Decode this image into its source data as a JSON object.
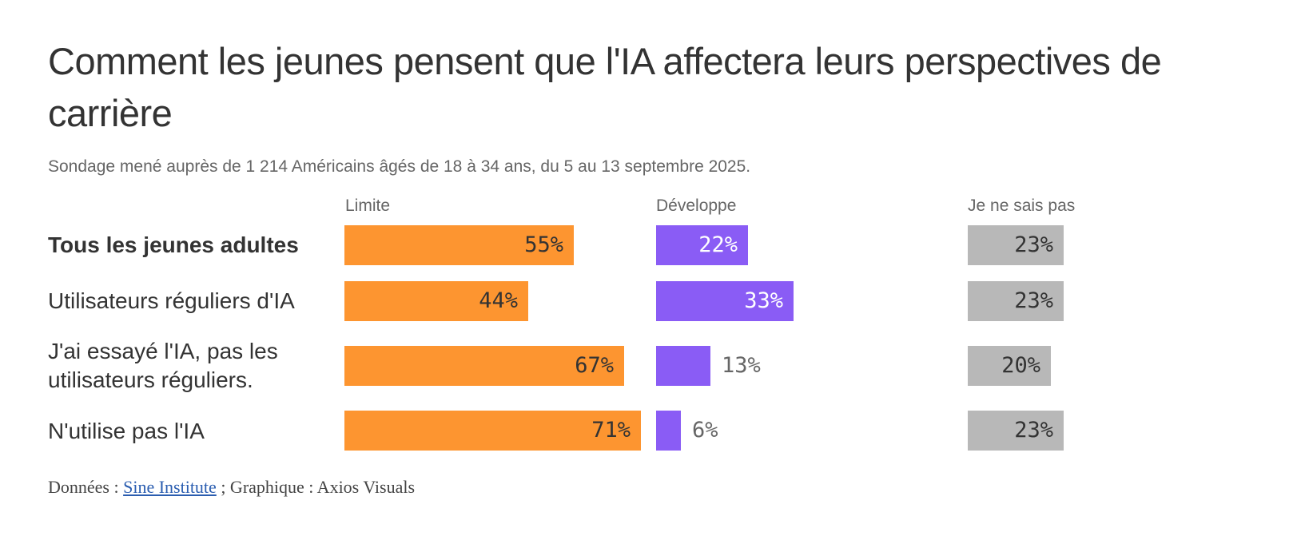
{
  "title": "Comment les jeunes pensent que l'IA affectera leurs perspectives de carrière",
  "subtitle": "Sondage mené auprès de 1 214 Américains âgés de 18 à 34 ans, du 5 au 13 septembre 2025.",
  "source": {
    "prefix": "Données : ",
    "link": "Sine Institute",
    "suffix": " ; Graphique : Axios Visuals"
  },
  "colors": {
    "limite": "#fd9530",
    "developpe": "#8a5cf5",
    "nsp": "#b8b8b8"
  },
  "chart_data": {
    "type": "bar",
    "title": "Comment les jeunes pensent que l'IA affectera leurs perspectives de carrière",
    "categories": [
      "Tous les jeunes adultes",
      "Utilisateurs réguliers d'IA",
      "J'ai essayé l'IA, pas les utilisateurs réguliers.",
      "N'utilise pas l'IA"
    ],
    "series": [
      {
        "name": "Limite",
        "values": [
          55,
          44,
          67,
          71
        ],
        "labels": [
          "55%",
          "44%",
          "67%",
          "71%"
        ]
      },
      {
        "name": "Développe",
        "values": [
          22,
          33,
          13,
          6
        ],
        "labels": [
          "22%",
          "33%",
          "13%",
          "6%"
        ]
      },
      {
        "name": "Je ne sais pas",
        "values": [
          23,
          23,
          20,
          23
        ],
        "labels": [
          "23%",
          "23%",
          "20%",
          "23%"
        ]
      }
    ],
    "unit": "%",
    "xlim": [
      0,
      100
    ]
  }
}
